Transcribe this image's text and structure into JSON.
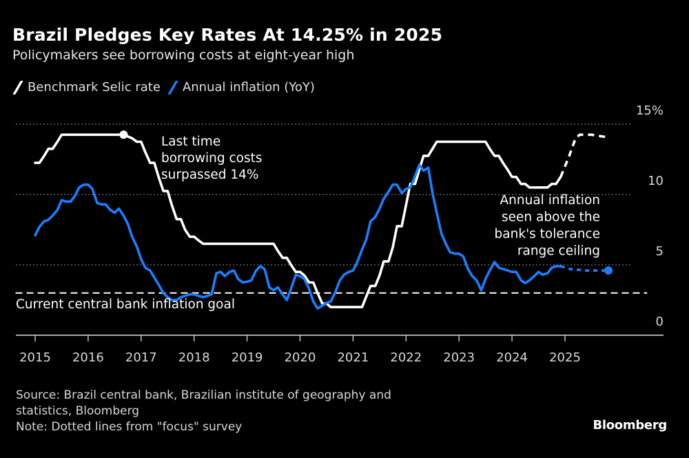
{
  "header": {
    "title": "Brazil Pledges Key Rates At 14.25% in 2025",
    "subtitle": "Policymakers see borrowing costs at eight-year high"
  },
  "legend": [
    {
      "label": "Benchmark Selic rate",
      "color": "#ffffff"
    },
    {
      "label": "Annual inflation (YoY)",
      "color": "#1a7fff"
    }
  ],
  "footer": {
    "source_line1": "Source: Brazil central bank, Brazilian institute of geography and",
    "source_line2": "statistics, Bloomberg",
    "note": "Note: Dotted lines from \"focus\" survey",
    "logo": "Bloomberg"
  },
  "chart_data": {
    "type": "line",
    "title": "Brazil Pledges Key Rates At 14.25% in 2025",
    "subtitle": "Policymakers see borrowing costs at eight-year high",
    "xlabel": "",
    "ylabel": "",
    "xlim": [
      2014.63,
      2026.8
    ],
    "ylim": [
      0,
      15
    ],
    "x_ticks": [
      "2015",
      "2016",
      "2017",
      "2018",
      "2019",
      "2020",
      "2021",
      "2022",
      "2023",
      "2024",
      "2025"
    ],
    "y_ticks": [
      {
        "value": 15,
        "label": "15%"
      },
      {
        "value": 10,
        "label": "10"
      },
      {
        "value": 5,
        "label": "5"
      },
      {
        "value": 0,
        "label": "0"
      }
    ],
    "grid": "horizontal-dotted",
    "legend_position": "top-left",
    "series": [
      {
        "name": "Benchmark Selic rate",
        "color": "#ffffff",
        "style": "solid",
        "points": [
          [
            2015.0,
            12.25
          ],
          [
            2015.08,
            12.25
          ],
          [
            2015.17,
            12.75
          ],
          [
            2015.25,
            13.25
          ],
          [
            2015.33,
            13.25
          ],
          [
            2015.42,
            13.75
          ],
          [
            2015.5,
            14.25
          ],
          [
            2015.6,
            14.25
          ],
          [
            2016.0,
            14.25
          ],
          [
            2016.5,
            14.25
          ],
          [
            2016.67,
            14.25
          ],
          [
            2016.83,
            14.0
          ],
          [
            2016.92,
            13.75
          ],
          [
            2017.0,
            13.75
          ],
          [
            2017.08,
            13.0
          ],
          [
            2017.17,
            12.25
          ],
          [
            2017.25,
            12.25
          ],
          [
            2017.33,
            11.25
          ],
          [
            2017.42,
            10.25
          ],
          [
            2017.5,
            10.25
          ],
          [
            2017.58,
            9.25
          ],
          [
            2017.67,
            8.25
          ],
          [
            2017.75,
            8.25
          ],
          [
            2017.83,
            7.5
          ],
          [
            2017.92,
            7.0
          ],
          [
            2018.0,
            7.0
          ],
          [
            2018.08,
            6.75
          ],
          [
            2018.17,
            6.5
          ],
          [
            2018.25,
            6.5
          ],
          [
            2018.5,
            6.5
          ],
          [
            2019.0,
            6.5
          ],
          [
            2019.5,
            6.5
          ],
          [
            2019.58,
            6.0
          ],
          [
            2019.67,
            5.5
          ],
          [
            2019.75,
            5.5
          ],
          [
            2019.83,
            5.0
          ],
          [
            2019.92,
            4.5
          ],
          [
            2020.0,
            4.5
          ],
          [
            2020.08,
            4.25
          ],
          [
            2020.17,
            3.75
          ],
          [
            2020.25,
            3.75
          ],
          [
            2020.33,
            3.0
          ],
          [
            2020.42,
            2.25
          ],
          [
            2020.5,
            2.25
          ],
          [
            2020.58,
            2.0
          ],
          [
            2020.67,
            2.0
          ],
          [
            2021.0,
            2.0
          ],
          [
            2021.17,
            2.0
          ],
          [
            2021.25,
            2.75
          ],
          [
            2021.33,
            3.5
          ],
          [
            2021.42,
            3.5
          ],
          [
            2021.5,
            4.25
          ],
          [
            2021.58,
            5.25
          ],
          [
            2021.67,
            5.25
          ],
          [
            2021.75,
            6.25
          ],
          [
            2021.83,
            7.75
          ],
          [
            2021.92,
            7.75
          ],
          [
            2022.0,
            9.25
          ],
          [
            2022.08,
            10.75
          ],
          [
            2022.17,
            10.75
          ],
          [
            2022.25,
            11.75
          ],
          [
            2022.33,
            12.75
          ],
          [
            2022.42,
            12.75
          ],
          [
            2022.5,
            13.25
          ],
          [
            2022.58,
            13.75
          ],
          [
            2022.67,
            13.75
          ],
          [
            2023.0,
            13.75
          ],
          [
            2023.5,
            13.75
          ],
          [
            2023.58,
            13.25
          ],
          [
            2023.67,
            12.75
          ],
          [
            2023.75,
            12.75
          ],
          [
            2023.83,
            12.25
          ],
          [
            2023.92,
            11.75
          ],
          [
            2024.0,
            11.25
          ],
          [
            2024.08,
            11.25
          ],
          [
            2024.17,
            10.75
          ],
          [
            2024.25,
            10.75
          ],
          [
            2024.33,
            10.5
          ],
          [
            2024.5,
            10.5
          ],
          [
            2024.67,
            10.5
          ],
          [
            2024.75,
            10.75
          ],
          [
            2024.83,
            10.75
          ],
          [
            2024.92,
            11.25
          ]
        ]
      },
      {
        "name": "Benchmark Selic rate (Focus survey forecast)",
        "color": "#ffffff",
        "style": "dashed",
        "points": [
          [
            2024.92,
            11.25
          ],
          [
            2025.08,
            12.75
          ],
          [
            2025.2,
            14.0
          ],
          [
            2025.28,
            14.25
          ],
          [
            2025.5,
            14.25
          ],
          [
            2025.75,
            14.1
          ],
          [
            2025.82,
            14.0
          ]
        ]
      },
      {
        "name": "Annual inflation (YoY)",
        "color": "#1a7fff",
        "style": "solid",
        "points": [
          [
            2015.0,
            7.1
          ],
          [
            2015.08,
            7.7
          ],
          [
            2015.17,
            8.1
          ],
          [
            2015.25,
            8.2
          ],
          [
            2015.33,
            8.5
          ],
          [
            2015.42,
            8.9
          ],
          [
            2015.5,
            9.6
          ],
          [
            2015.58,
            9.5
          ],
          [
            2015.67,
            9.5
          ],
          [
            2015.75,
            9.9
          ],
          [
            2015.83,
            10.5
          ],
          [
            2015.92,
            10.7
          ],
          [
            2016.0,
            10.7
          ],
          [
            2016.08,
            10.4
          ],
          [
            2016.17,
            9.4
          ],
          [
            2016.25,
            9.3
          ],
          [
            2016.33,
            9.3
          ],
          [
            2016.42,
            8.9
          ],
          [
            2016.5,
            8.7
          ],
          [
            2016.58,
            9.0
          ],
          [
            2016.67,
            8.5
          ],
          [
            2016.75,
            7.9
          ],
          [
            2016.83,
            7.0
          ],
          [
            2016.92,
            6.3
          ],
          [
            2017.0,
            5.4
          ],
          [
            2017.08,
            4.8
          ],
          [
            2017.17,
            4.6
          ],
          [
            2017.25,
            4.1
          ],
          [
            2017.33,
            3.6
          ],
          [
            2017.42,
            3.0
          ],
          [
            2017.5,
            2.7
          ],
          [
            2017.58,
            2.5
          ],
          [
            2017.67,
            2.5
          ],
          [
            2017.75,
            2.7
          ],
          [
            2017.83,
            2.8
          ],
          [
            2017.92,
            2.9
          ],
          [
            2018.0,
            2.9
          ],
          [
            2018.08,
            2.8
          ],
          [
            2018.17,
            2.7
          ],
          [
            2018.25,
            2.8
          ],
          [
            2018.33,
            2.9
          ],
          [
            2018.42,
            4.4
          ],
          [
            2018.5,
            4.5
          ],
          [
            2018.58,
            4.2
          ],
          [
            2018.67,
            4.5
          ],
          [
            2018.75,
            4.6
          ],
          [
            2018.83,
            4.0
          ],
          [
            2018.92,
            3.75
          ],
          [
            2019.0,
            3.8
          ],
          [
            2019.08,
            3.9
          ],
          [
            2019.17,
            4.6
          ],
          [
            2019.25,
            4.9
          ],
          [
            2019.33,
            4.7
          ],
          [
            2019.42,
            3.4
          ],
          [
            2019.5,
            3.2
          ],
          [
            2019.58,
            3.4
          ],
          [
            2019.67,
            2.9
          ],
          [
            2019.75,
            2.5
          ],
          [
            2019.83,
            3.3
          ],
          [
            2019.92,
            4.3
          ],
          [
            2020.0,
            4.2
          ],
          [
            2020.08,
            4.0
          ],
          [
            2020.17,
            3.3
          ],
          [
            2020.25,
            2.4
          ],
          [
            2020.33,
            1.9
          ],
          [
            2020.42,
            2.1
          ],
          [
            2020.5,
            2.3
          ],
          [
            2020.58,
            2.4
          ],
          [
            2020.67,
            3.1
          ],
          [
            2020.75,
            3.9
          ],
          [
            2020.83,
            4.3
          ],
          [
            2020.92,
            4.5
          ],
          [
            2021.0,
            4.6
          ],
          [
            2021.08,
            5.2
          ],
          [
            2021.17,
            6.1
          ],
          [
            2021.25,
            6.8
          ],
          [
            2021.33,
            8.1
          ],
          [
            2021.42,
            8.4
          ],
          [
            2021.5,
            9.0
          ],
          [
            2021.58,
            9.7
          ],
          [
            2021.67,
            10.2
          ],
          [
            2021.75,
            10.7
          ],
          [
            2021.83,
            10.7
          ],
          [
            2021.92,
            10.1
          ],
          [
            2022.0,
            10.4
          ],
          [
            2022.08,
            10.5
          ],
          [
            2022.17,
            11.3
          ],
          [
            2022.25,
            12.1
          ],
          [
            2022.33,
            11.7
          ],
          [
            2022.42,
            11.9
          ],
          [
            2022.5,
            10.1
          ],
          [
            2022.58,
            8.7
          ],
          [
            2022.67,
            7.2
          ],
          [
            2022.75,
            6.5
          ],
          [
            2022.83,
            5.9
          ],
          [
            2022.92,
            5.8
          ],
          [
            2023.0,
            5.8
          ],
          [
            2023.08,
            5.6
          ],
          [
            2023.17,
            4.7
          ],
          [
            2023.25,
            4.2
          ],
          [
            2023.33,
            3.9
          ],
          [
            2023.42,
            3.2
          ],
          [
            2023.5,
            4.0
          ],
          [
            2023.58,
            4.6
          ],
          [
            2023.67,
            5.2
          ],
          [
            2023.75,
            4.8
          ],
          [
            2023.83,
            4.7
          ],
          [
            2023.92,
            4.6
          ],
          [
            2024.0,
            4.5
          ],
          [
            2024.08,
            4.5
          ],
          [
            2024.17,
            3.9
          ],
          [
            2024.25,
            3.7
          ],
          [
            2024.33,
            3.9
          ],
          [
            2024.42,
            4.2
          ],
          [
            2024.5,
            4.5
          ],
          [
            2024.58,
            4.3
          ],
          [
            2024.67,
            4.4
          ],
          [
            2024.75,
            4.8
          ],
          [
            2024.83,
            4.9
          ],
          [
            2024.92,
            4.9
          ]
        ]
      },
      {
        "name": "Annual inflation (Focus survey forecast)",
        "color": "#1a7fff",
        "style": "dotted",
        "points": [
          [
            2024.92,
            4.9
          ],
          [
            2025.1,
            4.7
          ],
          [
            2025.4,
            4.6
          ],
          [
            2025.7,
            4.6
          ],
          [
            2025.82,
            4.6
          ]
        ]
      },
      {
        "name": "Current central bank inflation goal",
        "color": "#ffffff",
        "style": "dashed",
        "points": [
          [
            2014.63,
            3.0
          ],
          [
            2026.55,
            3.0
          ]
        ]
      }
    ],
    "markers": [
      {
        "name": "selic-peak-marker",
        "x": 2016.67,
        "y": 14.25,
        "color": "#ffffff"
      },
      {
        "name": "inflation-forecast-end-marker",
        "x": 2025.82,
        "y": 4.6,
        "color": "#1a7fff"
      }
    ],
    "annotations": [
      {
        "name": "annotation-last-time",
        "lines": [
          "Last time",
          "borrowing costs",
          "surpassed 14%"
        ],
        "align": "left"
      },
      {
        "name": "annotation-annual-inflation",
        "lines": [
          "Annual inflation",
          "seen above the",
          "bank's tolerance",
          "range ceiling"
        ],
        "align": "right"
      },
      {
        "name": "annotation-inflation-goal",
        "lines": [
          "Current central bank inflation goal"
        ],
        "align": "left"
      }
    ]
  }
}
